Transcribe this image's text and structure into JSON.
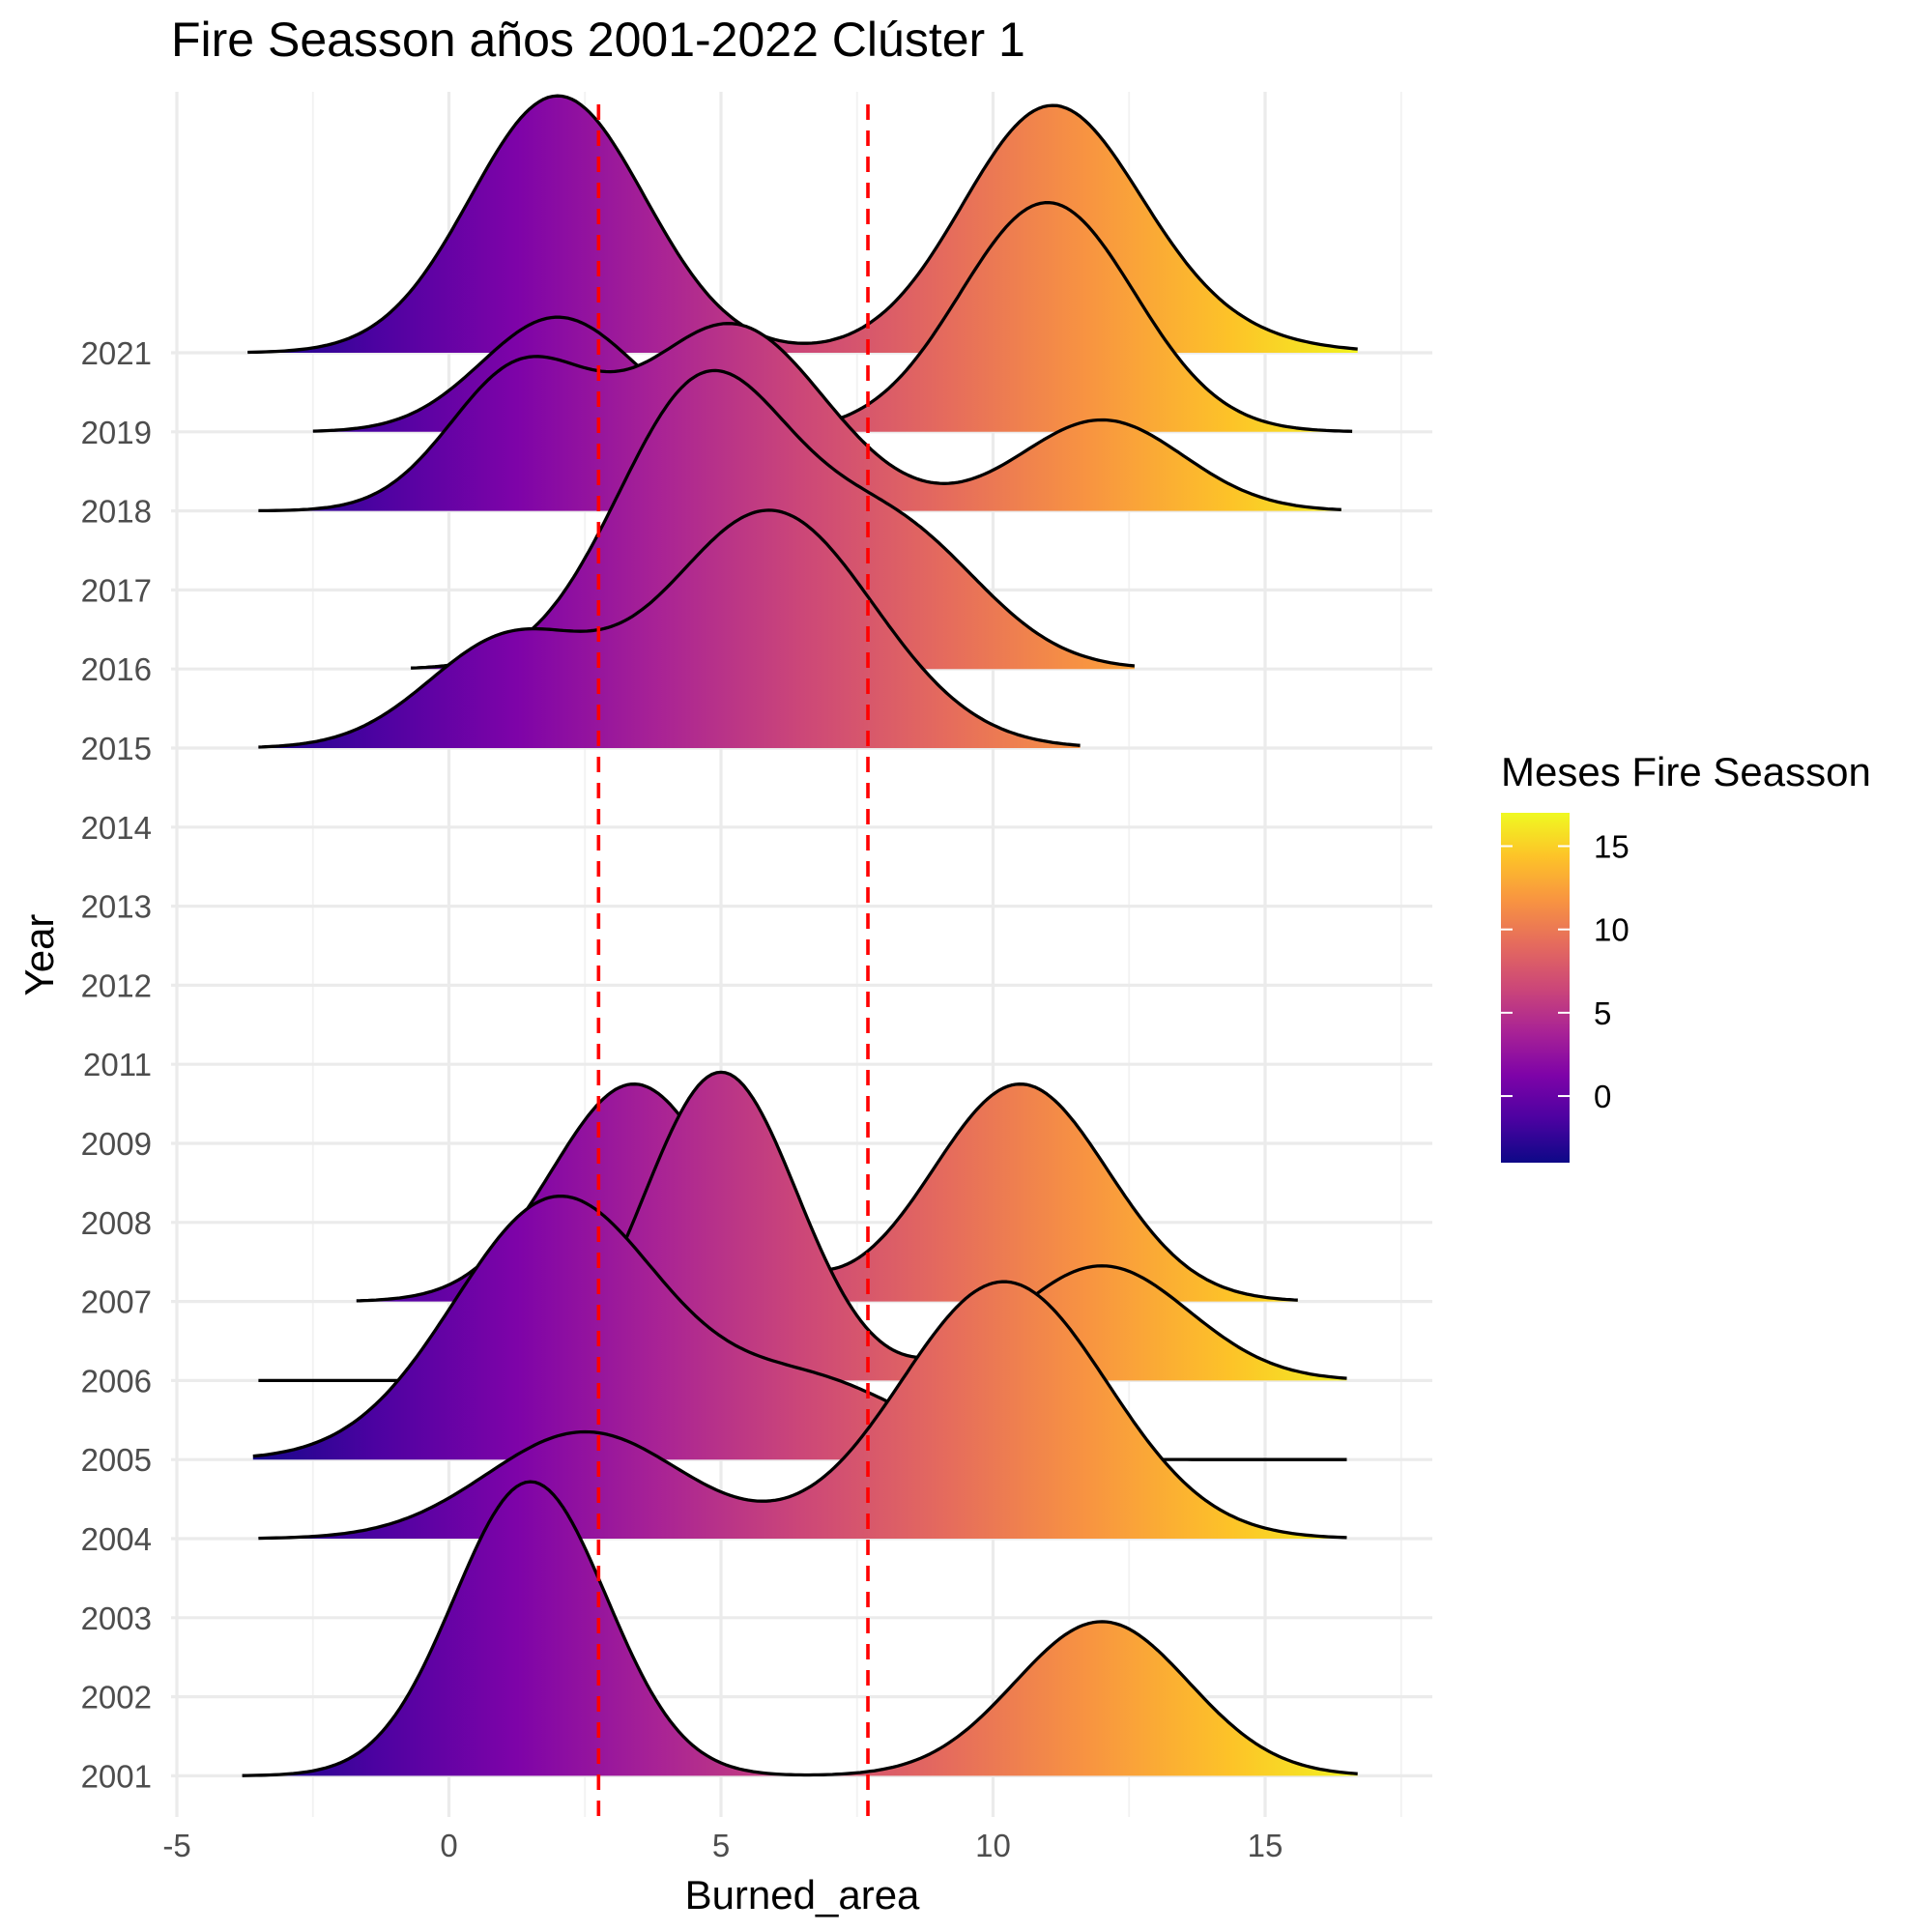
{
  "chart_data": {
    "type": "ridgeline",
    "title": "Fire Seasson años 2001-2022 Clúster 1",
    "xlabel": "Burned_area",
    "ylabel": "Year",
    "xlim": [
      -5,
      18
    ],
    "x_ticks": [
      -5,
      0,
      5,
      10,
      15
    ],
    "x_tick_labels": [
      "-5",
      "0",
      "5",
      "10",
      "15"
    ],
    "categories": [
      "2001",
      "2002",
      "2003",
      "2004",
      "2005",
      "2006",
      "2007",
      "2008",
      "2009",
      "2011",
      "2012",
      "2013",
      "2014",
      "2015",
      "2016",
      "2017",
      "2018",
      "2019",
      "2021"
    ],
    "reference_lines": [
      2.75,
      7.7
    ],
    "reference_line_color": "#ff0000",
    "grid": true,
    "legend": {
      "title": "Meses Fire Seasson",
      "position": "right",
      "range": [
        -4,
        17
      ],
      "ticks": [
        0,
        5,
        10,
        15
      ],
      "tick_labels": [
        "0",
        "5",
        "10",
        "15"
      ],
      "palette": "plasma",
      "colors": [
        "#0d0887",
        "#4c02a1",
        "#7e03a8",
        "#a92395",
        "#cc4778",
        "#e56b5d",
        "#f89441",
        "#fdc328",
        "#f0f921"
      ]
    },
    "series": [
      {
        "year": "2021",
        "x_range": [
          -3.7,
          16.7
        ],
        "peaks": [
          {
            "center": 2.0,
            "sd": 1.6,
            "height": 3.25
          },
          {
            "center": 11.0,
            "sd": 1.6,
            "height": 2.9
          },
          {
            "center": 12.8,
            "sd": 1.9,
            "height": 0.35
          }
        ]
      },
      {
        "year": "2019",
        "x_range": [
          -2.5,
          16.6
        ],
        "peaks": [
          {
            "center": 2.0,
            "sd": 1.4,
            "height": 1.45
          },
          {
            "center": 5.3,
            "sd": 0.6,
            "height": 0.08
          },
          {
            "center": 11.0,
            "sd": 1.6,
            "height": 2.9
          }
        ]
      },
      {
        "year": "2018",
        "x_range": [
          -3.5,
          16.4
        ],
        "peaks": [
          {
            "center": 1.3,
            "sd": 1.3,
            "height": 1.75
          },
          {
            "center": 5.2,
            "sd": 1.7,
            "height": 2.35
          },
          {
            "center": 12.0,
            "sd": 1.5,
            "height": 1.15
          }
        ]
      },
      {
        "year": "2016",
        "x_range": [
          -0.7,
          12.6
        ],
        "peaks": [
          {
            "center": 4.7,
            "sd": 1.6,
            "height": 3.6
          },
          {
            "center": 8.2,
            "sd": 1.6,
            "height": 1.7
          }
        ]
      },
      {
        "year": "2015",
        "x_range": [
          -3.5,
          11.6
        ],
        "peaks": [
          {
            "center": 1.1,
            "sd": 1.5,
            "height": 1.35
          },
          {
            "center": 5.9,
            "sd": 1.9,
            "height": 3.0
          }
        ]
      },
      {
        "year": "2007",
        "x_range": [
          -1.7,
          15.6
        ],
        "peaks": [
          {
            "center": 3.4,
            "sd": 1.5,
            "height": 2.75
          },
          {
            "center": 10.5,
            "sd": 1.6,
            "height": 2.75
          }
        ]
      },
      {
        "year": "2006",
        "x_range": [
          -3.5,
          16.5
        ],
        "peaks": [
          {
            "center": 5.0,
            "sd": 1.4,
            "height": 3.9
          },
          {
            "center": 12.0,
            "sd": 1.6,
            "height": 1.45
          }
        ]
      },
      {
        "year": "2005",
        "x_range": [
          -3.6,
          16.5
        ],
        "peaks": [
          {
            "center": 2.0,
            "sd": 1.9,
            "height": 3.3
          },
          {
            "center": 6.7,
            "sd": 1.8,
            "height": 0.95
          }
        ]
      },
      {
        "year": "2004",
        "x_range": [
          -3.5,
          16.5
        ],
        "peaks": [
          {
            "center": 2.5,
            "sd": 1.8,
            "height": 1.35
          },
          {
            "center": 10.2,
            "sd": 1.9,
            "height": 3.25
          }
        ]
      },
      {
        "year": "2001",
        "x_range": [
          -3.8,
          16.7
        ],
        "peaks": [
          {
            "center": 1.5,
            "sd": 1.4,
            "height": 3.72
          },
          {
            "center": 12.0,
            "sd": 1.6,
            "height": 1.95
          }
        ]
      }
    ]
  }
}
